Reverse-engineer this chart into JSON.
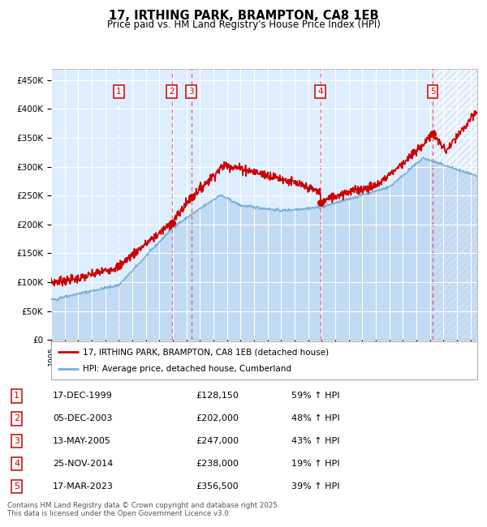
{
  "title": "17, IRTHING PARK, BRAMPTON, CA8 1EB",
  "subtitle": "Price paid vs. HM Land Registry's House Price Index (HPI)",
  "legend_line1": "17, IRTHING PARK, BRAMPTON, CA8 1EB (detached house)",
  "legend_line2": "HPI: Average price, detached house, Cumberland",
  "sale_dates": [
    2000.0,
    2003.92,
    2005.36,
    2014.9,
    2023.21
  ],
  "sale_prices": [
    128150,
    202000,
    247000,
    238000,
    356500
  ],
  "sale_labels": [
    "1",
    "2",
    "3",
    "4",
    "5"
  ],
  "table_rows": [
    {
      "label": "1",
      "date": "17-DEC-1999",
      "price": "£128,150",
      "pct": "59% ↑ HPI"
    },
    {
      "label": "2",
      "date": "05-DEC-2003",
      "price": "£202,000",
      "pct": "48% ↑ HPI"
    },
    {
      "label": "3",
      "date": "13-MAY-2005",
      "price": "£247,000",
      "pct": "43% ↑ HPI"
    },
    {
      "label": "4",
      "date": "25-NOV-2014",
      "price": "£238,000",
      "pct": "19% ↑ HPI"
    },
    {
      "label": "5",
      "date": "17-MAR-2023",
      "price": "£356,500",
      "pct": "39% ↑ HPI"
    }
  ],
  "footer": "Contains HM Land Registry data © Crown copyright and database right 2025.\nThis data is licensed under the Open Government Licence v3.0.",
  "red_color": "#cc0000",
  "blue_color": "#7ab0d4",
  "blue_fill_color": "#aaccee",
  "bg_color": "#ddeeff",
  "grid_color": "#ffffff",
  "vline_color": "#ee4444",
  "ylim": [
    0,
    470000
  ],
  "xlim_start": 1995.0,
  "xlim_end": 2026.5,
  "yticks": [
    0,
    50000,
    100000,
    150000,
    200000,
    250000,
    300000,
    350000,
    400000,
    450000
  ]
}
